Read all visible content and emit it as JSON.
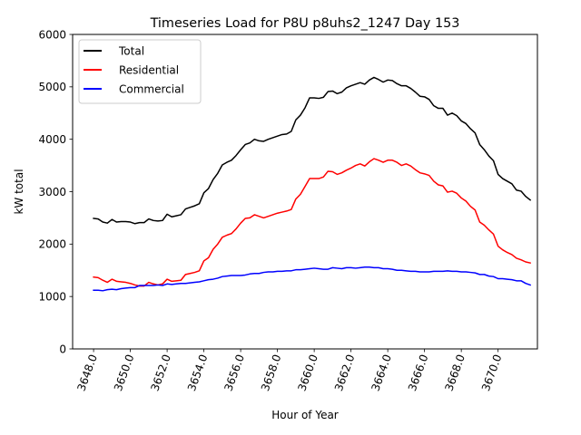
{
  "chart_data": {
    "type": "line",
    "title": "Timeseries Load for P8U p8uhs2_1247  Day 153",
    "xlabel": "Hour of Year",
    "ylabel": "kW total",
    "xlim": [
      3646.86,
      3672.14
    ],
    "ylim": [
      0,
      6000
    ],
    "xticks": [
      3648,
      3650,
      3652,
      3654,
      3656,
      3658,
      3660,
      3662,
      3664,
      3666,
      3668,
      3670
    ],
    "xtick_labels": [
      "3648.0",
      "3650.0",
      "3652.0",
      "3654.0",
      "3656.0",
      "3658.0",
      "3660.0",
      "3662.0",
      "3664.0",
      "3666.0",
      "3668.0",
      "3670.0"
    ],
    "yticks": [
      0,
      1000,
      2000,
      3000,
      4000,
      5000,
      6000
    ],
    "ytick_labels": [
      "0",
      "1000",
      "2000",
      "3000",
      "4000",
      "5000",
      "6000"
    ],
    "legend_position": "top-left",
    "x_start": 3648.0,
    "x_step": 0.25,
    "series": [
      {
        "name": "Total",
        "color": "#000000",
        "values": [
          2490,
          2480,
          2420,
          2400,
          2470,
          2420,
          2430,
          2430,
          2420,
          2390,
          2410,
          2410,
          2480,
          2450,
          2440,
          2450,
          2570,
          2520,
          2540,
          2560,
          2670,
          2700,
          2730,
          2770,
          2980,
          3060,
          3230,
          3350,
          3510,
          3560,
          3600,
          3690,
          3800,
          3900,
          3930,
          4000,
          3970,
          3960,
          4000,
          4030,
          4060,
          4090,
          4100,
          4150,
          4370,
          4460,
          4600,
          4790,
          4790,
          4780,
          4800,
          4910,
          4920,
          4870,
          4900,
          4980,
          5020,
          5050,
          5080,
          5050,
          5130,
          5180,
          5140,
          5090,
          5130,
          5120,
          5060,
          5020,
          5020,
          4970,
          4900,
          4820,
          4810,
          4760,
          4640,
          4590,
          4590,
          4460,
          4500,
          4450,
          4350,
          4300,
          4200,
          4120,
          3900,
          3800,
          3680,
          3590,
          3330,
          3250,
          3200,
          3150,
          3030,
          3010,
          2910,
          2840
        ]
      },
      {
        "name": "Residential",
        "color": "#ff0000",
        "values": [
          1370,
          1360,
          1310,
          1270,
          1330,
          1290,
          1280,
          1270,
          1250,
          1220,
          1200,
          1200,
          1270,
          1240,
          1220,
          1240,
          1330,
          1290,
          1300,
          1310,
          1420,
          1440,
          1460,
          1490,
          1680,
          1740,
          1900,
          2000,
          2130,
          2170,
          2200,
          2290,
          2400,
          2490,
          2500,
          2560,
          2530,
          2500,
          2530,
          2560,
          2590,
          2610,
          2630,
          2660,
          2860,
          2950,
          3100,
          3250,
          3250,
          3250,
          3280,
          3390,
          3380,
          3330,
          3360,
          3410,
          3450,
          3500,
          3530,
          3490,
          3570,
          3630,
          3600,
          3560,
          3600,
          3600,
          3560,
          3500,
          3530,
          3490,
          3420,
          3360,
          3340,
          3310,
          3200,
          3130,
          3110,
          2990,
          3010,
          2970,
          2880,
          2820,
          2720,
          2650,
          2420,
          2360,
          2270,
          2190,
          1960,
          1890,
          1840,
          1800,
          1730,
          1700,
          1660,
          1640
        ]
      },
      {
        "name": "Commercial",
        "color": "#0000ff",
        "values": [
          1120,
          1120,
          1110,
          1130,
          1140,
          1130,
          1150,
          1160,
          1170,
          1170,
          1210,
          1210,
          1210,
          1210,
          1220,
          1210,
          1240,
          1230,
          1240,
          1250,
          1250,
          1260,
          1270,
          1280,
          1300,
          1320,
          1330,
          1350,
          1380,
          1390,
          1400,
          1400,
          1400,
          1410,
          1430,
          1440,
          1440,
          1460,
          1470,
          1470,
          1480,
          1480,
          1490,
          1490,
          1510,
          1510,
          1520,
          1530,
          1540,
          1530,
          1520,
          1520,
          1550,
          1540,
          1530,
          1550,
          1550,
          1540,
          1550,
          1560,
          1560,
          1550,
          1550,
          1530,
          1530,
          1520,
          1500,
          1500,
          1490,
          1480,
          1480,
          1470,
          1470,
          1470,
          1480,
          1480,
          1480,
          1490,
          1480,
          1480,
          1470,
          1470,
          1460,
          1450,
          1420,
          1420,
          1390,
          1380,
          1340,
          1340,
          1330,
          1320,
          1300,
          1300,
          1250,
          1220
        ]
      }
    ]
  }
}
